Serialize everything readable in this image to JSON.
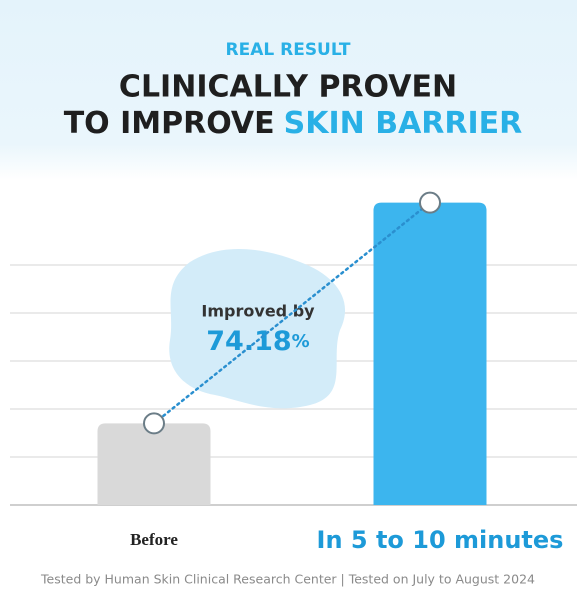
{
  "chart_data": {
    "type": "bar",
    "kicker": "REAL RESULT",
    "title": [
      "CLINICALLY PROVEN",
      "TO IMPROVE"
    ],
    "title_highlight": "SKIN BARRIER",
    "categories": [
      "Before",
      "In 5 to 10 minutes"
    ],
    "values": [
      1.7,
      6.3
    ],
    "colors": [
      "#d9d9d9",
      "#3cb5ee"
    ],
    "label_colors": [
      "#222222",
      "#1d9ad8"
    ],
    "ylim": [
      0,
      6.75
    ],
    "yticks": [
      1,
      2,
      3,
      4,
      5
    ],
    "grid": true,
    "annotation": {
      "label": "Improved by",
      "value": "74.18",
      "unit": "%"
    },
    "footnote": "Tested by Human Skin Clinical Research Center | Tested on July to August 2024"
  }
}
